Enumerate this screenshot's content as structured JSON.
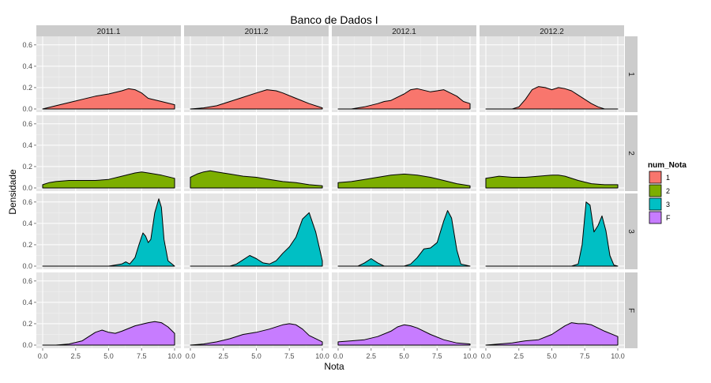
{
  "chart_data": {
    "type": "area",
    "title": "Banco de Dados I",
    "xlabel": "Nota",
    "ylabel": "Densidade",
    "xlim": [
      0,
      10
    ],
    "ylim": [
      0,
      0.65
    ],
    "x_ticks": [
      "0.0",
      "2.5",
      "5.0",
      "7.5",
      "10.0"
    ],
    "y_ticks": [
      "0.0",
      "0.2",
      "0.4",
      "0.6"
    ],
    "x_tick_values": [
      0,
      2.5,
      5,
      7.5,
      10
    ],
    "y_tick_values": [
      0,
      0.2,
      0.4,
      0.6
    ],
    "grid": true,
    "legend_position": "right",
    "column_facets": [
      "2011.1",
      "2011.2",
      "2012.1",
      "2012.2"
    ],
    "row_facets": [
      "1",
      "2",
      "3",
      "F"
    ],
    "legend": {
      "title": "num_Nota",
      "entries": [
        {
          "label": "1",
          "color": "#F8766D"
        },
        {
          "label": "2",
          "color": "#7CAE00"
        },
        {
          "label": "3",
          "color": "#00BFC4"
        },
        {
          "label": "F",
          "color": "#C77CFF"
        }
      ]
    },
    "panels": [
      {
        "row": "1",
        "col": "2011.1",
        "x": [
          0,
          1,
          2,
          3,
          4,
          5,
          6,
          6.5,
          7,
          7.5,
          8,
          9,
          10
        ],
        "y": [
          0,
          0.03,
          0.06,
          0.09,
          0.12,
          0.14,
          0.17,
          0.19,
          0.18,
          0.15,
          0.1,
          0.07,
          0.04
        ]
      },
      {
        "row": "1",
        "col": "2011.2",
        "x": [
          0,
          1,
          2,
          3,
          4,
          5,
          5.8,
          6.5,
          7,
          8,
          9,
          10
        ],
        "y": [
          0,
          0.01,
          0.03,
          0.07,
          0.11,
          0.15,
          0.18,
          0.17,
          0.15,
          0.1,
          0.05,
          0.01
        ]
      },
      {
        "row": "1",
        "col": "2012.1",
        "x": [
          0,
          1,
          2,
          3,
          3.5,
          4,
          5,
          5.5,
          6,
          7,
          7.5,
          8,
          9,
          9.5,
          10
        ],
        "y": [
          0,
          0,
          0.02,
          0.05,
          0.07,
          0.08,
          0.14,
          0.18,
          0.19,
          0.16,
          0.17,
          0.18,
          0.12,
          0.07,
          0.05
        ]
      },
      {
        "row": "1",
        "col": "2012.2",
        "x": [
          0,
          1,
          1.5,
          2,
          2.5,
          3,
          3.5,
          4,
          4.5,
          5,
          5.5,
          6,
          6.5,
          7,
          8,
          8.5,
          9,
          10
        ],
        "y": [
          0,
          0,
          0,
          0,
          0.02,
          0.09,
          0.18,
          0.21,
          0.2,
          0.18,
          0.2,
          0.19,
          0.17,
          0.13,
          0.05,
          0.02,
          0,
          0
        ]
      },
      {
        "row": "2",
        "col": "2011.1",
        "x": [
          0,
          0.5,
          1,
          2,
          3,
          4,
          5,
          6,
          7,
          7.5,
          8,
          9,
          10
        ],
        "y": [
          0.03,
          0.05,
          0.06,
          0.07,
          0.07,
          0.07,
          0.08,
          0.11,
          0.14,
          0.15,
          0.14,
          0.12,
          0.09
        ]
      },
      {
        "row": "2",
        "col": "2011.2",
        "x": [
          0,
          0.5,
          1,
          1.5,
          2,
          3,
          4,
          5,
          6,
          7,
          8,
          9,
          10
        ],
        "y": [
          0.1,
          0.13,
          0.15,
          0.16,
          0.15,
          0.13,
          0.11,
          0.1,
          0.08,
          0.06,
          0.05,
          0.03,
          0.02
        ]
      },
      {
        "row": "2",
        "col": "2012.1",
        "x": [
          0,
          1,
          2,
          3,
          4,
          5,
          6,
          7,
          8,
          9,
          10
        ],
        "y": [
          0.05,
          0.06,
          0.08,
          0.1,
          0.12,
          0.13,
          0.12,
          0.1,
          0.07,
          0.04,
          0.02
        ]
      },
      {
        "row": "2",
        "col": "2012.2",
        "x": [
          0,
          0.5,
          1,
          2,
          3,
          4,
          5,
          5.5,
          6,
          7,
          8,
          9,
          10
        ],
        "y": [
          0.09,
          0.1,
          0.11,
          0.1,
          0.1,
          0.11,
          0.12,
          0.12,
          0.11,
          0.07,
          0.04,
          0.03,
          0.03
        ]
      },
      {
        "row": "3",
        "col": "2011.1",
        "x": [
          0,
          5,
          5.5,
          6,
          6.3,
          6.6,
          7,
          7.3,
          7.6,
          7.8,
          8,
          8.2,
          8.5,
          8.8,
          9,
          9.2,
          9.5,
          10
        ],
        "y": [
          0,
          0,
          0.01,
          0.02,
          0.04,
          0.02,
          0.08,
          0.2,
          0.31,
          0.28,
          0.22,
          0.25,
          0.5,
          0.63,
          0.55,
          0.25,
          0.05,
          0
        ]
      },
      {
        "row": "3",
        "col": "2011.2",
        "x": [
          0,
          3,
          3.5,
          4,
          4.5,
          5,
          5.5,
          6,
          6.5,
          7,
          7.5,
          8,
          8.5,
          9,
          9.5,
          10
        ],
        "y": [
          0,
          0,
          0.02,
          0.06,
          0.1,
          0.07,
          0.03,
          0.02,
          0.05,
          0.12,
          0.18,
          0.27,
          0.44,
          0.5,
          0.32,
          0.05
        ]
      },
      {
        "row": "3",
        "col": "2012.1",
        "x": [
          0,
          1.5,
          2,
          2.5,
          3,
          3.5,
          5,
          5.5,
          6,
          6.5,
          7,
          7.5,
          8,
          8.3,
          8.6,
          9,
          9.3,
          10
        ],
        "y": [
          0,
          0,
          0.03,
          0.07,
          0.03,
          0,
          0,
          0.02,
          0.08,
          0.16,
          0.17,
          0.22,
          0.42,
          0.52,
          0.45,
          0.15,
          0.02,
          0
        ]
      },
      {
        "row": "3",
        "col": "2012.2",
        "x": [
          0,
          6.5,
          7,
          7.3,
          7.6,
          7.9,
          8.2,
          8.5,
          8.8,
          9.1,
          9.4,
          9.7,
          10
        ],
        "y": [
          0,
          0,
          0.02,
          0.2,
          0.6,
          0.57,
          0.32,
          0.38,
          0.47,
          0.33,
          0.1,
          0.01,
          0
        ]
      },
      {
        "row": "F",
        "col": "2011.1",
        "x": [
          0,
          1,
          2,
          3,
          3.5,
          4,
          4.5,
          5,
          5.5,
          6,
          7,
          8,
          8.5,
          9,
          9.5,
          10
        ],
        "y": [
          0,
          0,
          0.01,
          0.04,
          0.08,
          0.12,
          0.14,
          0.12,
          0.11,
          0.13,
          0.18,
          0.21,
          0.22,
          0.21,
          0.17,
          0.11
        ]
      },
      {
        "row": "F",
        "col": "2011.2",
        "x": [
          0,
          1,
          2,
          3,
          4,
          5,
          6,
          7,
          7.5,
          8,
          8.5,
          9,
          10
        ],
        "y": [
          0,
          0.01,
          0.03,
          0.06,
          0.1,
          0.12,
          0.15,
          0.19,
          0.2,
          0.19,
          0.15,
          0.09,
          0.03
        ]
      },
      {
        "row": "F",
        "col": "2012.1",
        "x": [
          0,
          1,
          2,
          3,
          4,
          4.5,
          5,
          5.5,
          6,
          7,
          8,
          9,
          10
        ],
        "y": [
          0.03,
          0.04,
          0.05,
          0.08,
          0.13,
          0.17,
          0.19,
          0.18,
          0.16,
          0.1,
          0.05,
          0.02,
          0.01
        ]
      },
      {
        "row": "F",
        "col": "2012.2",
        "x": [
          0,
          1,
          2,
          2.5,
          3,
          4,
          5,
          6,
          6.5,
          7,
          7.5,
          8,
          9,
          10
        ],
        "y": [
          0,
          0.01,
          0.02,
          0.03,
          0.04,
          0.05,
          0.1,
          0.18,
          0.21,
          0.2,
          0.2,
          0.19,
          0.13,
          0.08
        ]
      }
    ]
  }
}
